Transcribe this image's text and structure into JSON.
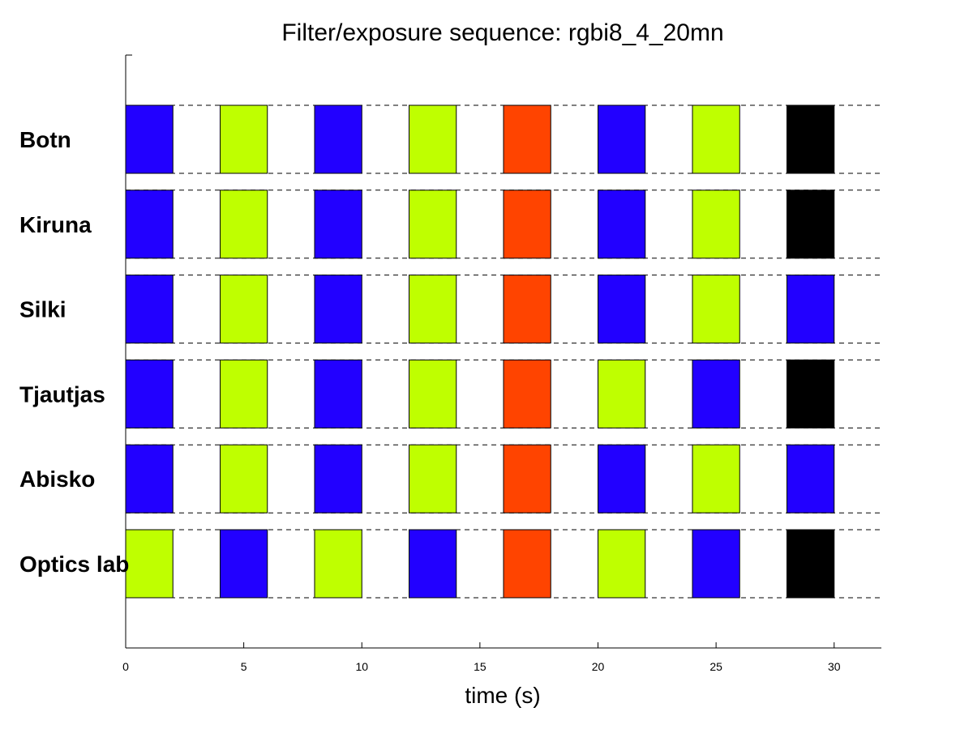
{
  "chart_data": {
    "type": "bar",
    "title": "Filter/exposure sequence: rgbi8_4_20mn",
    "xlabel": "time (s)",
    "ylabel": "",
    "xlim": [
      0,
      32
    ],
    "xticks": [
      {
        "value": 0,
        "label": "0"
      },
      {
        "value": 5,
        "label": "5"
      },
      {
        "value": 10,
        "label": "10"
      },
      {
        "value": 15,
        "label": "15"
      },
      {
        "value": 20,
        "label": "20"
      },
      {
        "value": 25,
        "label": "25"
      },
      {
        "value": 30,
        "label": "30"
      }
    ],
    "grid": false,
    "filter_colors": {
      "b": "#2200ff",
      "g": "#bfff00",
      "r": "#ff4400",
      "k": "#000000"
    },
    "exposure_starts": [
      0,
      4,
      8,
      12,
      16,
      20,
      24,
      28
    ],
    "exposure_duration": 2,
    "stations": [
      {
        "name": "Botn",
        "sequence": [
          "b",
          "g",
          "b",
          "g",
          "r",
          "b",
          "g",
          "k"
        ]
      },
      {
        "name": "Kiruna",
        "sequence": [
          "b",
          "g",
          "b",
          "g",
          "r",
          "b",
          "g",
          "k"
        ]
      },
      {
        "name": "Silki",
        "sequence": [
          "b",
          "g",
          "b",
          "g",
          "r",
          "b",
          "g",
          "b"
        ]
      },
      {
        "name": "Tjautjas",
        "sequence": [
          "b",
          "g",
          "b",
          "g",
          "r",
          "g",
          "b",
          "k"
        ]
      },
      {
        "name": "Abisko",
        "sequence": [
          "b",
          "g",
          "b",
          "g",
          "r",
          "b",
          "g",
          "b"
        ]
      },
      {
        "name": "Optics lab",
        "sequence": [
          "g",
          "b",
          "g",
          "b",
          "r",
          "g",
          "b",
          "k"
        ]
      }
    ]
  }
}
